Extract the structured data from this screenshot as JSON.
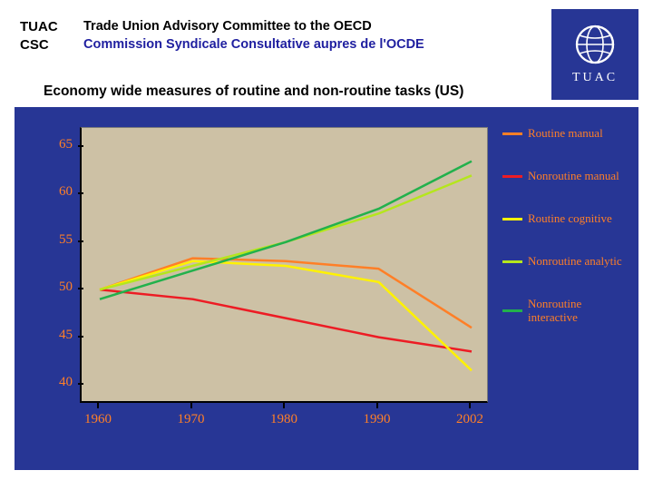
{
  "header": {
    "abbrev_line1": "TUAC",
    "abbrev_line2": "CSC",
    "full_line1": "Trade Union Advisory Committee to the OECD",
    "full_line2": "Commission Syndicale Consultative aupres de l'OCDE"
  },
  "logo": {
    "text": "TUAC",
    "bg_color": "#273695",
    "glyph_color": "#ffffff"
  },
  "subtitle": "Economy wide measures of routine and non-routine tasks (US)",
  "chart": {
    "type": "line",
    "background_color": "#273695",
    "plot_bg_color": "#cdc1a5",
    "axis_color": "#000000",
    "label_color": "#ff7f27",
    "label_font": "Comic Sans MS",
    "label_fontsize": 15,
    "x_categories": [
      "1960",
      "1970",
      "1980",
      "1990",
      "2002"
    ],
    "ylim": [
      38,
      67
    ],
    "ytick_step": 5,
    "yticks": [
      40,
      45,
      50,
      55,
      60,
      65
    ],
    "line_width": 2.5,
    "series": [
      {
        "name": "Routine manual",
        "color": "#ff7f27",
        "values": [
          50.0,
          53.3,
          53.0,
          52.2,
          46.0
        ]
      },
      {
        "name": "Nonroutine manual",
        "color": "#ed1c24",
        "values": [
          50.0,
          49.0,
          47.0,
          45.0,
          43.5
        ]
      },
      {
        "name": "Routine cognitive",
        "color": "#fff200",
        "values": [
          50.0,
          53.0,
          52.5,
          50.8,
          41.5
        ]
      },
      {
        "name": "Nonroutine analytic",
        "color": "#b5e61d",
        "values": [
          50.0,
          52.5,
          55.0,
          58.0,
          62.0
        ]
      },
      {
        "name": "Nonroutine interactive",
        "color": "#22b14c",
        "values": [
          49.0,
          52.0,
          55.0,
          58.5,
          63.5
        ]
      }
    ]
  }
}
